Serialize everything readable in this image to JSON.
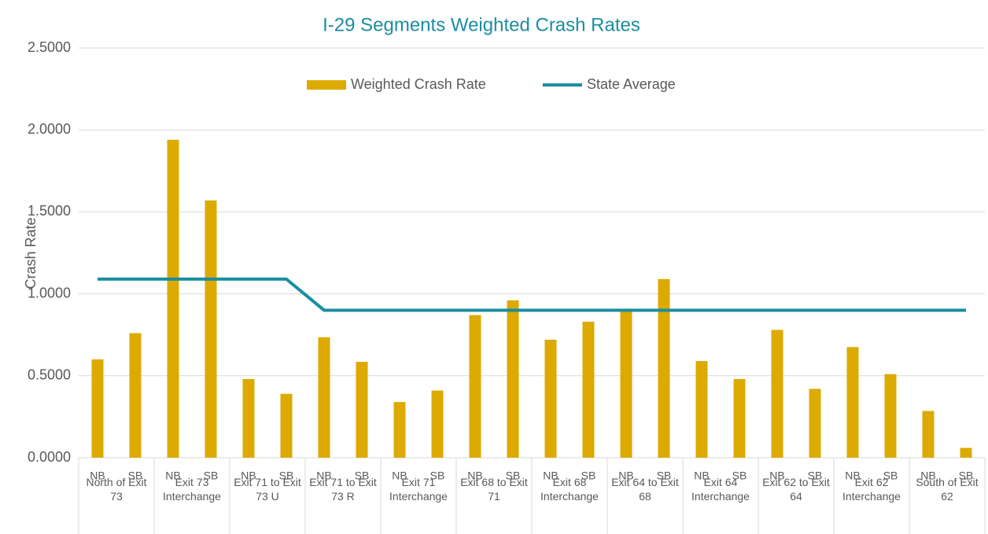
{
  "chart_data": {
    "type": "bar",
    "title": "I-29 Segments Weighted Crash Rates",
    "y_label": "Crash Rate",
    "groups": [
      "North of Exit 73",
      "Exit 73 Interchange",
      "Exit 71 to Exit 73 U",
      "Exit 71 to Exit 73 R",
      "Exit 71 Interchange",
      "Exit 68 to Exit 71",
      "Exit 68 Interchange",
      "Exit 64 to Exit 68",
      "Exit 64 Interchange",
      "Exit 62 to Exit 64",
      "Exit 62 Interchange",
      "South of Exit 62"
    ],
    "categories": [
      "NB",
      "SB",
      "NB",
      "SB",
      "NB",
      "SB",
      "NB",
      "SB",
      "NB",
      "SB",
      "NB",
      "SB",
      "NB",
      "SB",
      "NB",
      "SB",
      "NB",
      "SB",
      "NB",
      "SB",
      "NB",
      "SB",
      "NB",
      "SB"
    ],
    "series": [
      {
        "name": "Weighted Crash Rate",
        "type": "bar",
        "color": "#dcaa00",
        "values": [
          0.6,
          0.76,
          1.94,
          1.57,
          0.48,
          0.39,
          0.735,
          0.585,
          0.34,
          0.41,
          0.87,
          0.96,
          0.72,
          0.83,
          0.9,
          1.09,
          0.59,
          0.48,
          0.78,
          0.42,
          0.675,
          0.51,
          0.285,
          0.06
        ]
      },
      {
        "name": "State Average",
        "type": "line",
        "color": "#1a8ea0",
        "values": [
          1.09,
          1.09,
          1.09,
          1.09,
          1.09,
          1.09,
          0.9,
          0.9,
          0.9,
          0.9,
          0.9,
          0.9,
          0.9,
          0.9,
          0.9,
          0.9,
          0.9,
          0.9,
          0.9,
          0.9,
          0.9,
          0.9,
          0.9,
          0.9
        ]
      }
    ],
    "ylim": [
      0,
      2.5
    ],
    "yticks": [
      {
        "value": 0,
        "label": "0.0000"
      },
      {
        "value": 0.5,
        "label": "0.5000"
      },
      {
        "value": 1,
        "label": "1.0000"
      },
      {
        "value": 1.5,
        "label": "1.5000"
      },
      {
        "value": 2,
        "label": "2.0000"
      },
      {
        "value": 2.5,
        "label": "2.5000"
      }
    ],
    "grid": true,
    "legend": "top"
  }
}
